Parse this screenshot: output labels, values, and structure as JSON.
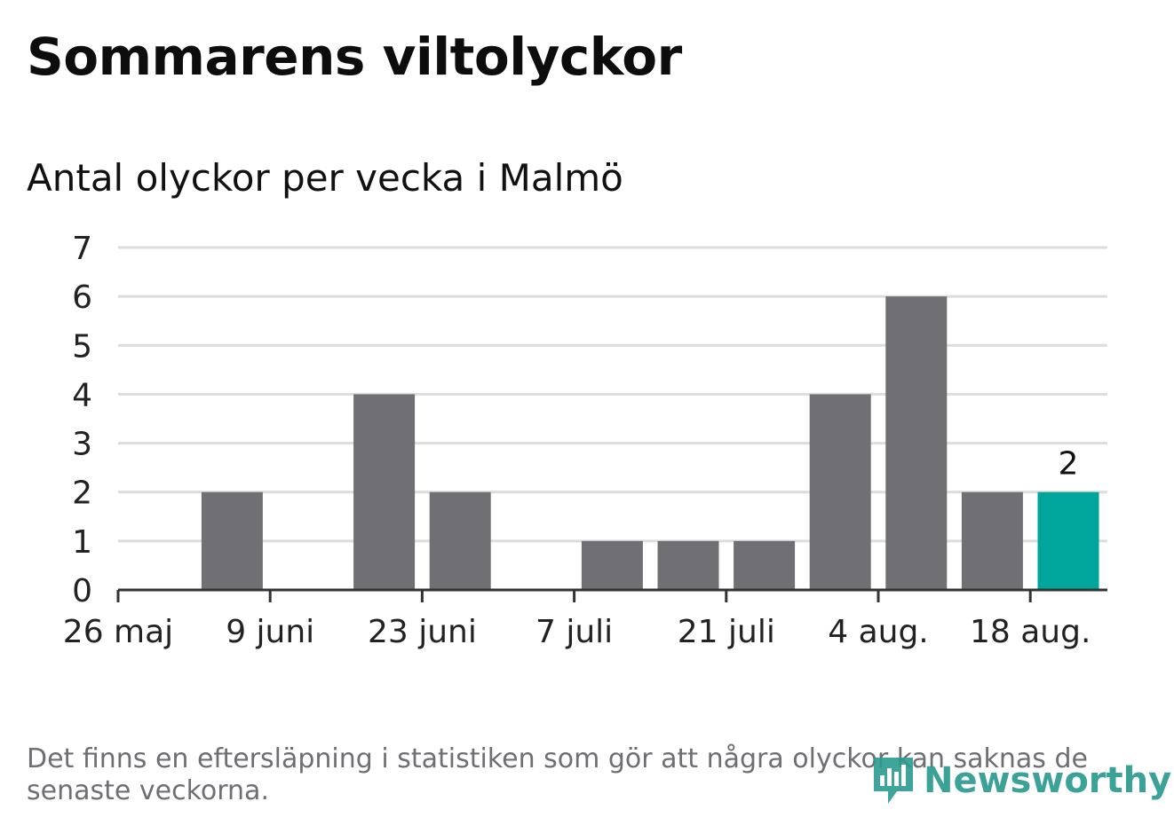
{
  "title": "Sommarens viltolyckor",
  "subtitle": "Antal olyckor per vecka i Malmö",
  "footnote": "Det finns en eftersläpning i statistiken som gör att några olyckor kan saknas de senaste veckorna.",
  "logo": {
    "text": "Newsworthy",
    "icon": "newsworthy-logo-icon"
  },
  "colors": {
    "bar": "#706f74",
    "highlight": "#00a59b",
    "grid": "#dcdcdc",
    "axis": "#333333",
    "logo": "#2a9b8f"
  },
  "chart_data": {
    "type": "bar",
    "categories": [
      "26 maj",
      "2 juni",
      "9 juni",
      "16 juni",
      "23 juni",
      "30 juni",
      "7 juli",
      "14 juli",
      "21 juli",
      "28 juli",
      "4 aug.",
      "11 aug.",
      "18 aug."
    ],
    "values": [
      0,
      2,
      0,
      4,
      2,
      0,
      1,
      1,
      1,
      4,
      6,
      2,
      2
    ],
    "x_tick_labels": [
      "26 maj",
      "9 juni",
      "23 juni",
      "7 juli",
      "21 juli",
      "4 aug.",
      "18 aug."
    ],
    "y_ticks": [
      0,
      1,
      2,
      3,
      4,
      5,
      6,
      7
    ],
    "ylim": [
      0,
      7
    ],
    "highlight_index": 12,
    "highlight_label": "2",
    "grid": true,
    "legend": "none"
  }
}
